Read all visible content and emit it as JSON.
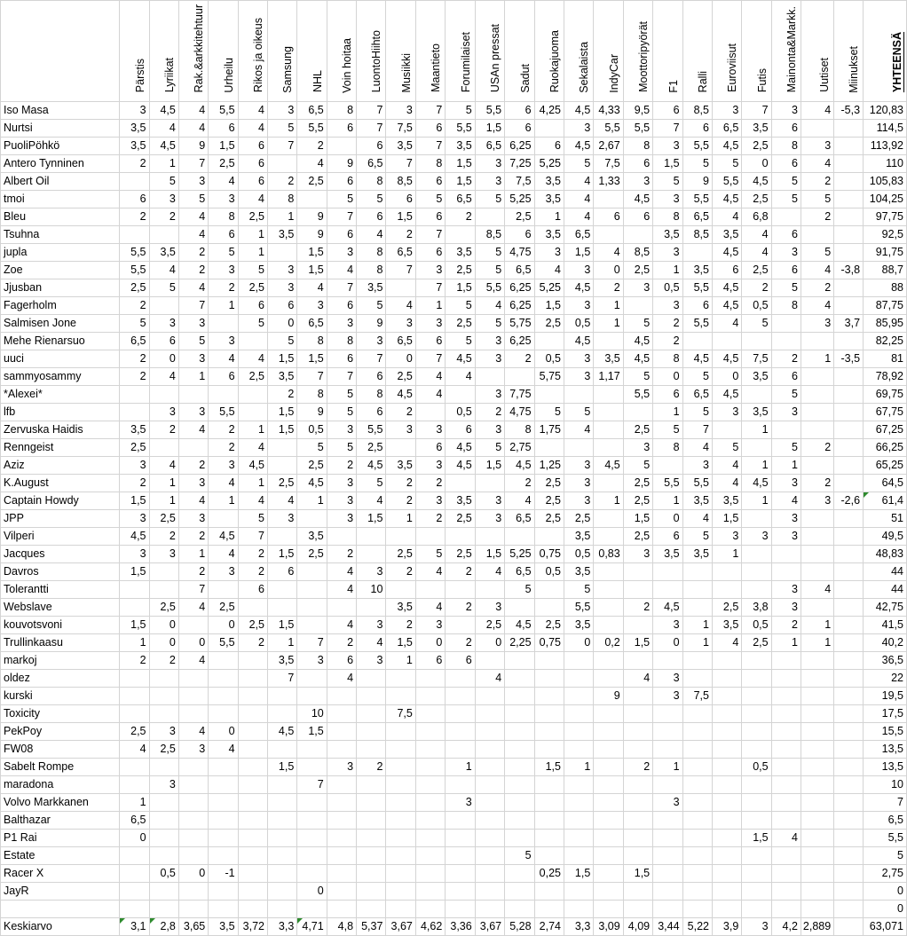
{
  "columns": [
    "Pärstis",
    "Lyriikat",
    "Rak.&arkkitehtuur",
    "Urheilu",
    "Rikos ja oikeus",
    "Samsung",
    "NHL",
    "Voin hoitaa",
    "LuontoHiihto",
    "Musiikki",
    "Maantieto",
    "Forumilaiset",
    "USAn pressat",
    "Sadut",
    "Ruokajuoma",
    "Sekalaista",
    "IndyCar",
    "Moottoripyörät",
    "F1",
    "Ralli",
    "Euroviisut",
    "Futis",
    "Mainonta&Markk.",
    "Uutiset",
    "Miinukset"
  ],
  "total_header": "YHTEENSÄ",
  "rows": [
    {
      "name": "Iso Masa",
      "v": [
        "3",
        "4,5",
        "4",
        "5,5",
        "4",
        "3",
        "6,5",
        "8",
        "7",
        "3",
        "7",
        "5",
        "5,5",
        "6",
        "4,25",
        "4,5",
        "4,33",
        "9,5",
        "6",
        "8,5",
        "3",
        "7",
        "3",
        "4",
        "-5,3"
      ],
      "total": "120,83"
    },
    {
      "name": "Nurtsi",
      "v": [
        "3,5",
        "4",
        "4",
        "6",
        "4",
        "5",
        "5,5",
        "6",
        "7",
        "7,5",
        "6",
        "5,5",
        "1,5",
        "6",
        "",
        "3",
        "5,5",
        "5,5",
        "7",
        "6",
        "6,5",
        "3,5",
        "6",
        "",
        ""
      ],
      "total": "114,5"
    },
    {
      "name": "PuoliPöhkö",
      "v": [
        "3,5",
        "4,5",
        "9",
        "1,5",
        "6",
        "7",
        "2",
        "",
        "6",
        "3,5",
        "7",
        "3,5",
        "6,5",
        "6,25",
        "6",
        "4,5",
        "2,67",
        "8",
        "3",
        "5,5",
        "4,5",
        "2,5",
        "8",
        "3",
        ""
      ],
      "total": "113,92"
    },
    {
      "name": "Antero Tynninen",
      "v": [
        "2",
        "1",
        "7",
        "2,5",
        "6",
        "",
        "4",
        "9",
        "6,5",
        "7",
        "8",
        "1,5",
        "3",
        "7,25",
        "5,25",
        "5",
        "7,5",
        "6",
        "1,5",
        "5",
        "5",
        "0",
        "6",
        "4",
        ""
      ],
      "total": "110"
    },
    {
      "name": "Albert Oil",
      "v": [
        "",
        "5",
        "3",
        "4",
        "6",
        "2",
        "2,5",
        "6",
        "8",
        "8,5",
        "6",
        "1,5",
        "3",
        "7,5",
        "3,5",
        "4",
        "1,33",
        "3",
        "5",
        "9",
        "5,5",
        "4,5",
        "5",
        "2",
        ""
      ],
      "total": "105,83"
    },
    {
      "name": "tmoi",
      "v": [
        "6",
        "3",
        "5",
        "3",
        "4",
        "8",
        "",
        "5",
        "5",
        "6",
        "5",
        "6,5",
        "5",
        "5,25",
        "3,5",
        "4",
        "",
        "4,5",
        "3",
        "5,5",
        "4,5",
        "2,5",
        "5",
        "5",
        ""
      ],
      "total": "104,25"
    },
    {
      "name": "Bleu",
      "v": [
        "2",
        "2",
        "4",
        "8",
        "2,5",
        "1",
        "9",
        "7",
        "6",
        "1,5",
        "6",
        "2",
        "",
        "2,5",
        "1",
        "4",
        "6",
        "6",
        "8",
        "6,5",
        "4",
        "6,8",
        "",
        "2",
        ""
      ],
      "total": "97,75"
    },
    {
      "name": "Tsuhna",
      "v": [
        "",
        "",
        "4",
        "6",
        "1",
        "3,5",
        "9",
        "6",
        "4",
        "2",
        "7",
        "",
        "8,5",
        "6",
        "3,5",
        "6,5",
        "",
        "",
        "3,5",
        "8,5",
        "3,5",
        "4",
        "6",
        "",
        ""
      ],
      "total": "92,5"
    },
    {
      "name": "jupla",
      "v": [
        "5,5",
        "3,5",
        "2",
        "5",
        "1",
        "",
        "1,5",
        "3",
        "8",
        "6,5",
        "6",
        "3,5",
        "5",
        "4,75",
        "3",
        "1,5",
        "4",
        "8,5",
        "3",
        "",
        "4,5",
        "4",
        "3",
        "5",
        ""
      ],
      "total": "91,75"
    },
    {
      "name": "Zoe",
      "v": [
        "5,5",
        "4",
        "2",
        "3",
        "5",
        "3",
        "1,5",
        "4",
        "8",
        "7",
        "3",
        "2,5",
        "5",
        "6,5",
        "4",
        "3",
        "0",
        "2,5",
        "1",
        "3,5",
        "6",
        "2,5",
        "6",
        "4",
        "-3,8"
      ],
      "total": "88,7"
    },
    {
      "name": "Jjusban",
      "v": [
        "2,5",
        "5",
        "4",
        "2",
        "2,5",
        "3",
        "4",
        "7",
        "3,5",
        "",
        "7",
        "1,5",
        "5,5",
        "6,25",
        "5,25",
        "4,5",
        "2",
        "3",
        "0,5",
        "5,5",
        "4,5",
        "2",
        "5",
        "2",
        ""
      ],
      "total": "88"
    },
    {
      "name": "Fagerholm",
      "v": [
        "2",
        "",
        "7",
        "1",
        "6",
        "6",
        "3",
        "6",
        "5",
        "4",
        "1",
        "5",
        "4",
        "6,25",
        "1,5",
        "3",
        "1",
        "",
        "3",
        "6",
        "4,5",
        "0,5",
        "8",
        "4",
        ""
      ],
      "total": "87,75"
    },
    {
      "name": "Salmisen Jone",
      "v": [
        "5",
        "3",
        "3",
        "",
        "5",
        "0",
        "6,5",
        "3",
        "9",
        "3",
        "3",
        "2,5",
        "5",
        "5,75",
        "2,5",
        "0,5",
        "1",
        "5",
        "2",
        "5,5",
        "4",
        "5",
        "",
        "3",
        "3,7"
      ],
      "total": "85,95"
    },
    {
      "name": "Mehe Rienarsuo",
      "v": [
        "6,5",
        "6",
        "5",
        "3",
        "",
        "5",
        "8",
        "8",
        "3",
        "6,5",
        "6",
        "5",
        "3",
        "6,25",
        "",
        "4,5",
        "",
        "4,5",
        "2",
        "",
        "",
        "",
        "",
        "",
        ""
      ],
      "total": "82,25"
    },
    {
      "name": "uuci",
      "v": [
        "2",
        "0",
        "3",
        "4",
        "4",
        "1,5",
        "1,5",
        "6",
        "7",
        "0",
        "7",
        "4,5",
        "3",
        "2",
        "0,5",
        "3",
        "3,5",
        "4,5",
        "8",
        "4,5",
        "4,5",
        "7,5",
        "2",
        "1",
        "-3,5"
      ],
      "total": "81"
    },
    {
      "name": "sammyosammy",
      "v": [
        "2",
        "4",
        "1",
        "6",
        "2,5",
        "3,5",
        "7",
        "7",
        "6",
        "2,5",
        "4",
        "4",
        "",
        "",
        "5,75",
        "3",
        "1,17",
        "5",
        "0",
        "5",
        "0",
        "3,5",
        "6",
        "",
        ""
      ],
      "total": "78,92"
    },
    {
      "name": "*Alexei*",
      "v": [
        "",
        "",
        "",
        "",
        "",
        "2",
        "8",
        "5",
        "8",
        "4,5",
        "4",
        "",
        "3",
        "7,75",
        "",
        "",
        "",
        "5,5",
        "6",
        "6,5",
        "4,5",
        "",
        "5",
        "",
        ""
      ],
      "total": "69,75"
    },
    {
      "name": "lfb",
      "v": [
        "",
        "3",
        "3",
        "5,5",
        "",
        "1,5",
        "9",
        "5",
        "6",
        "2",
        "",
        "0,5",
        "2",
        "4,75",
        "5",
        "5",
        "",
        "",
        "1",
        "5",
        "3",
        "3,5",
        "3",
        "",
        ""
      ],
      "total": "67,75"
    },
    {
      "name": "Zervuska Haidis",
      "v": [
        "3,5",
        "2",
        "4",
        "2",
        "1",
        "1,5",
        "0,5",
        "3",
        "5,5",
        "3",
        "3",
        "6",
        "3",
        "8",
        "1,75",
        "4",
        "",
        "2,5",
        "5",
        "7",
        "",
        "1",
        "",
        "",
        ""
      ],
      "total": "67,25"
    },
    {
      "name": "Renngeist",
      "v": [
        "2,5",
        "",
        "",
        "2",
        "4",
        "",
        "5",
        "5",
        "2,5",
        "",
        "6",
        "4,5",
        "5",
        "2,75",
        "",
        "",
        "",
        "3",
        "8",
        "4",
        "5",
        "",
        "5",
        "2",
        ""
      ],
      "total": "66,25"
    },
    {
      "name": "Aziz",
      "v": [
        "3",
        "4",
        "2",
        "3",
        "4,5",
        "",
        "2,5",
        "2",
        "4,5",
        "3,5",
        "3",
        "4,5",
        "1,5",
        "4,5",
        "1,25",
        "3",
        "4,5",
        "5",
        "",
        "3",
        "4",
        "1",
        "1",
        "",
        ""
      ],
      "total": "65,25"
    },
    {
      "name": "K.August",
      "v": [
        "2",
        "1",
        "3",
        "4",
        "1",
        "2,5",
        "4,5",
        "3",
        "5",
        "2",
        "2",
        "",
        "",
        "2",
        "2,5",
        "3",
        "",
        "2,5",
        "5,5",
        "5,5",
        "4",
        "4,5",
        "3",
        "2",
        ""
      ],
      "total": "64,5"
    },
    {
      "name": "Captain Howdy",
      "v": [
        "1,5",
        "1",
        "4",
        "1",
        "4",
        "4",
        "1",
        "3",
        "4",
        "2",
        "3",
        "3,5",
        "3",
        "4",
        "2,5",
        "3",
        "1",
        "2,5",
        "1",
        "3,5",
        "3,5",
        "1",
        "4",
        "3",
        "-2,6"
      ],
      "total": "61,4"
    },
    {
      "name": "JPP",
      "v": [
        "3",
        "2,5",
        "3",
        "",
        "5",
        "3",
        "",
        "3",
        "1,5",
        "1",
        "2",
        "2,5",
        "3",
        "6,5",
        "2,5",
        "2,5",
        "",
        "1,5",
        "0",
        "4",
        "1,5",
        "",
        "3",
        "",
        ""
      ],
      "total": "51"
    },
    {
      "name": "Vilperi",
      "v": [
        "4,5",
        "2",
        "2",
        "4,5",
        "7",
        "",
        "3,5",
        "",
        "",
        "",
        "",
        "",
        "",
        "",
        "",
        "3,5",
        "",
        "2,5",
        "6",
        "5",
        "3",
        "3",
        "3",
        "",
        ""
      ],
      "total": "49,5"
    },
    {
      "name": "Jacques",
      "v": [
        "3",
        "3",
        "1",
        "4",
        "2",
        "1,5",
        "2,5",
        "2",
        "",
        "2,5",
        "5",
        "2,5",
        "1,5",
        "5,25",
        "0,75",
        "0,5",
        "0,83",
        "3",
        "3,5",
        "3,5",
        "1",
        "",
        "",
        "",
        ""
      ],
      "total": "48,83"
    },
    {
      "name": "Davros",
      "v": [
        "1,5",
        "",
        "2",
        "3",
        "2",
        "6",
        "",
        "4",
        "3",
        "2",
        "4",
        "2",
        "4",
        "6,5",
        "0,5",
        "3,5",
        "",
        "",
        "",
        "",
        "",
        "",
        "",
        "",
        ""
      ],
      "total": "44"
    },
    {
      "name": "Tolerantti",
      "v": [
        "",
        "",
        "7",
        "",
        "6",
        "",
        "",
        "4",
        "10",
        "",
        "",
        "",
        "",
        "5",
        "",
        "5",
        "",
        "",
        "",
        "",
        "",
        "",
        "3",
        "4",
        ""
      ],
      "total": "44"
    },
    {
      "name": "Webslave",
      "v": [
        "",
        "2,5",
        "4",
        "2,5",
        "",
        "",
        "",
        "",
        "",
        "3,5",
        "4",
        "2",
        "3",
        "",
        "",
        "5,5",
        "",
        "2",
        "4,5",
        "",
        "2,5",
        "3,8",
        "3",
        "",
        ""
      ],
      "total": "42,75"
    },
    {
      "name": "kouvotsvoni",
      "v": [
        "1,5",
        "0",
        "",
        "0",
        "2,5",
        "1,5",
        "",
        "4",
        "3",
        "2",
        "3",
        "",
        "2,5",
        "4,5",
        "2,5",
        "3,5",
        "",
        "",
        "3",
        "1",
        "3,5",
        "0,5",
        "2",
        "1",
        ""
      ],
      "total": "41,5"
    },
    {
      "name": "Trullinkaasu",
      "v": [
        "1",
        "0",
        "0",
        "5,5",
        "2",
        "1",
        "7",
        "2",
        "4",
        "1,5",
        "0",
        "2",
        "0",
        "2,25",
        "0,75",
        "0",
        "0,2",
        "1,5",
        "0",
        "1",
        "4",
        "2,5",
        "1",
        "1",
        ""
      ],
      "total": "40,2"
    },
    {
      "name": "markoj",
      "v": [
        "2",
        "2",
        "4",
        "",
        "",
        "3,5",
        "3",
        "6",
        "3",
        "1",
        "6",
        "6",
        "",
        "",
        "",
        "",
        "",
        "",
        "",
        "",
        "",
        "",
        "",
        "",
        ""
      ],
      "total": "36,5"
    },
    {
      "name": "oldez",
      "v": [
        "",
        "",
        "",
        "",
        "",
        "7",
        "",
        "4",
        "",
        "",
        "",
        "",
        "4",
        "",
        "",
        "",
        "",
        "4",
        "3",
        "",
        "",
        "",
        "",
        "",
        ""
      ],
      "total": "22"
    },
    {
      "name": "kurski",
      "v": [
        "",
        "",
        "",
        "",
        "",
        "",
        "",
        "",
        "",
        "",
        "",
        "",
        "",
        "",
        "",
        "",
        "9",
        "",
        "3",
        "7,5",
        "",
        "",
        "",
        "",
        ""
      ],
      "total": "19,5"
    },
    {
      "name": "Toxicity",
      "v": [
        "",
        "",
        "",
        "",
        "",
        "",
        "10",
        "",
        "",
        "7,5",
        "",
        "",
        "",
        "",
        "",
        "",
        "",
        "",
        "",
        "",
        "",
        "",
        "",
        "",
        ""
      ],
      "total": "17,5"
    },
    {
      "name": "PekPoy",
      "v": [
        "2,5",
        "3",
        "4",
        "0",
        "",
        "4,5",
        "1,5",
        "",
        "",
        "",
        "",
        "",
        "",
        "",
        "",
        "",
        "",
        "",
        "",
        "",
        "",
        "",
        "",
        "",
        ""
      ],
      "total": "15,5"
    },
    {
      "name": "FW08",
      "v": [
        "4",
        "2,5",
        "3",
        "4",
        "",
        "",
        "",
        "",
        "",
        "",
        "",
        "",
        "",
        "",
        "",
        "",
        "",
        "",
        "",
        "",
        "",
        "",
        "",
        "",
        ""
      ],
      "total": "13,5"
    },
    {
      "name": "Sabelt Rompe",
      "v": [
        "",
        "",
        "",
        "",
        "",
        "1,5",
        "",
        "3",
        "2",
        "",
        "",
        "1",
        "",
        "",
        "1,5",
        "1",
        "",
        "2",
        "1",
        "",
        "",
        "0,5",
        "",
        "",
        ""
      ],
      "total": "13,5"
    },
    {
      "name": "maradona",
      "v": [
        "",
        "3",
        "",
        "",
        "",
        "",
        "7",
        "",
        "",
        "",
        "",
        "",
        "",
        "",
        "",
        "",
        "",
        "",
        "",
        "",
        "",
        "",
        "",
        "",
        ""
      ],
      "total": "10"
    },
    {
      "name": "Volvo Markkanen",
      "v": [
        "1",
        "",
        "",
        "",
        "",
        "",
        "",
        "",
        "",
        "",
        "",
        "3",
        "",
        "",
        "",
        "",
        "",
        "",
        "3",
        "",
        "",
        "",
        "",
        "",
        ""
      ],
      "total": "7"
    },
    {
      "name": "Balthazar",
      "v": [
        "6,5",
        "",
        "",
        "",
        "",
        "",
        "",
        "",
        "",
        "",
        "",
        "",
        "",
        "",
        "",
        "",
        "",
        "",
        "",
        "",
        "",
        "",
        "",
        "",
        ""
      ],
      "total": "6,5"
    },
    {
      "name": "P1 Rai",
      "v": [
        "0",
        "",
        "",
        "",
        "",
        "",
        "",
        "",
        "",
        "",
        "",
        "",
        "",
        "",
        "",
        "",
        "",
        "",
        "",
        "",
        "",
        "1,5",
        "4",
        "",
        ""
      ],
      "total": "5,5"
    },
    {
      "name": "Estate",
      "v": [
        "",
        "",
        "",
        "",
        "",
        "",
        "",
        "",
        "",
        "",
        "",
        "",
        "",
        "5",
        "",
        "",
        "",
        "",
        "",
        "",
        "",
        "",
        "",
        "",
        ""
      ],
      "total": "5"
    },
    {
      "name": "Racer X",
      "v": [
        "",
        "0,5",
        "0",
        "-1",
        "",
        "",
        "",
        "",
        "",
        "",
        "",
        "",
        "",
        "",
        "0,25",
        "1,5",
        "",
        "1,5",
        "",
        "",
        "",
        "",
        "",
        "",
        ""
      ],
      "total": "2,75"
    },
    {
      "name": "JayR",
      "v": [
        "",
        "",
        "",
        "",
        "",
        "",
        "0",
        "",
        "",
        "",
        "",
        "",
        "",
        "",
        "",
        "",
        "",
        "",
        "",
        "",
        "",
        "",
        "",
        "",
        ""
      ],
      "total": "0"
    },
    {
      "name": "",
      "v": [
        "",
        "",
        "",
        "",
        "",
        "",
        "",
        "",
        "",
        "",
        "",
        "",
        "",
        "",
        "",
        "",
        "",
        "",
        "",
        "",
        "",
        "",
        "",
        "",
        ""
      ],
      "total": "0"
    }
  ],
  "average": {
    "name": "Keskiarvo",
    "v": [
      "3,1",
      "2,8",
      "3,65",
      "3,5",
      "3,72",
      "3,3",
      "4,71",
      "4,8",
      "5,37",
      "3,67",
      "4,62",
      "3,36",
      "3,67",
      "5,28",
      "2,74",
      "3,3",
      "3,09",
      "4,09",
      "3,44",
      "5,22",
      "3,9",
      "3",
      "4,2",
      "2,889",
      ""
    ],
    "total": "63,071"
  },
  "colors": {
    "grid": "#d4d4d4",
    "error_indicator": "#2e8b2e"
  }
}
